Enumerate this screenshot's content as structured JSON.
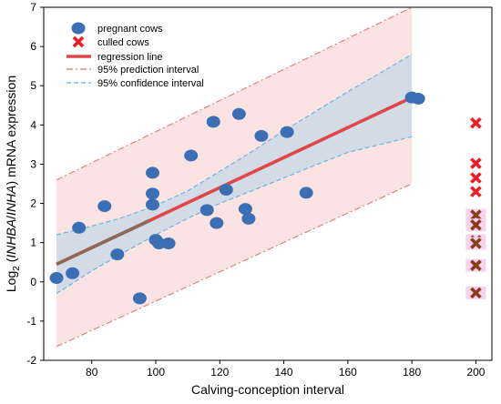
{
  "chart_data": {
    "type": "scatter",
    "title": "",
    "xlabel": "Calving-conception interval",
    "ylabel": "Log2 (INHBA/INHA) mRNA expression",
    "ylabel_parts": {
      "prefix": "Log",
      "subscript": "2",
      "open": " (",
      "gene1": "INHBA",
      "slash": "/",
      "gene2": "INHA",
      "rest": ") mRNA expression"
    },
    "xlim": [
      65,
      205
    ],
    "ylim": [
      -2,
      7
    ],
    "xticks": [
      80,
      100,
      120,
      140,
      160,
      180,
      200
    ],
    "yticks": [
      -2,
      -1,
      0,
      1,
      2,
      3,
      4,
      5,
      6,
      7
    ],
    "grid": false,
    "legend_placement": "top-left",
    "legend": [
      {
        "key": "pregnant",
        "label": "pregnant cows"
      },
      {
        "key": "culled",
        "label": "culled cows"
      },
      {
        "key": "regression",
        "label": "regression line"
      },
      {
        "key": "prediction",
        "label": "95% prediction interval"
      },
      {
        "key": "confidence",
        "label": "95% confidence interval"
      }
    ],
    "colors": {
      "pregnant": "#3a6fb5",
      "culled": "#ee1c25",
      "culled_overlap": "#8b3a1a",
      "regression": "#e04848",
      "regression_overlap": "#8a6a5a",
      "prediction_line": "#e07b6e",
      "prediction_fill": "#fbe3e3",
      "confidence_line": "#5ab4e0",
      "confidence_fill": "#d3dbe6",
      "highlight": "#f6d2ee"
    },
    "series": [
      {
        "name": "pregnant cows",
        "marker": "circle",
        "points": [
          {
            "x": 69,
            "y": 0.1
          },
          {
            "x": 74,
            "y": 0.22
          },
          {
            "x": 76,
            "y": 1.38
          },
          {
            "x": 84,
            "y": 1.93
          },
          {
            "x": 88,
            "y": 0.7
          },
          {
            "x": 95,
            "y": -0.42
          },
          {
            "x": 99,
            "y": 2.78
          },
          {
            "x": 99,
            "y": 2.25
          },
          {
            "x": 99,
            "y": 1.97
          },
          {
            "x": 100,
            "y": 1.07
          },
          {
            "x": 101,
            "y": 0.98
          },
          {
            "x": 104,
            "y": 0.98
          },
          {
            "x": 111,
            "y": 3.22
          },
          {
            "x": 116,
            "y": 1.83
          },
          {
            "x": 118,
            "y": 4.08
          },
          {
            "x": 119,
            "y": 1.5
          },
          {
            "x": 122,
            "y": 2.35
          },
          {
            "x": 126,
            "y": 4.28
          },
          {
            "x": 128,
            "y": 1.86
          },
          {
            "x": 129,
            "y": 1.61
          },
          {
            "x": 133,
            "y": 3.72
          },
          {
            "x": 141,
            "y": 3.82
          },
          {
            "x": 147,
            "y": 2.27
          },
          {
            "x": 180,
            "y": 4.7
          },
          {
            "x": 182,
            "y": 4.67
          }
        ]
      },
      {
        "name": "culled cows",
        "marker": "x",
        "points": [
          {
            "x": 200,
            "y": 4.05
          },
          {
            "x": 200,
            "y": 3.02
          },
          {
            "x": 200,
            "y": 2.65
          },
          {
            "x": 200,
            "y": 2.3
          },
          {
            "x": 200,
            "y": 1.7
          },
          {
            "x": 200,
            "y": 1.45
          },
          {
            "x": 200,
            "y": 1.05
          },
          {
            "x": 200,
            "y": 0.98
          },
          {
            "x": 200,
            "y": 0.42
          },
          {
            "x": 200,
            "y": -0.28
          }
        ]
      }
    ],
    "regression": {
      "x": [
        69,
        180
      ],
      "y": [
        0.45,
        4.7
      ]
    },
    "prediction_interval": {
      "x": [
        69,
        180
      ],
      "upper": [
        2.6,
        7.0
      ],
      "lower": [
        -1.65,
        2.5
      ]
    },
    "confidence_interval": {
      "x": [
        69,
        80,
        90,
        100,
        110,
        120,
        130,
        140,
        150,
        160,
        170,
        180
      ],
      "upper": [
        1.2,
        1.42,
        1.65,
        1.95,
        2.32,
        2.82,
        3.32,
        3.85,
        4.35,
        4.85,
        5.32,
        5.8
      ],
      "lower": [
        -0.3,
        0.28,
        0.75,
        1.2,
        1.62,
        2.0,
        2.32,
        2.65,
        2.98,
        3.3,
        3.5,
        3.7
      ]
    }
  }
}
